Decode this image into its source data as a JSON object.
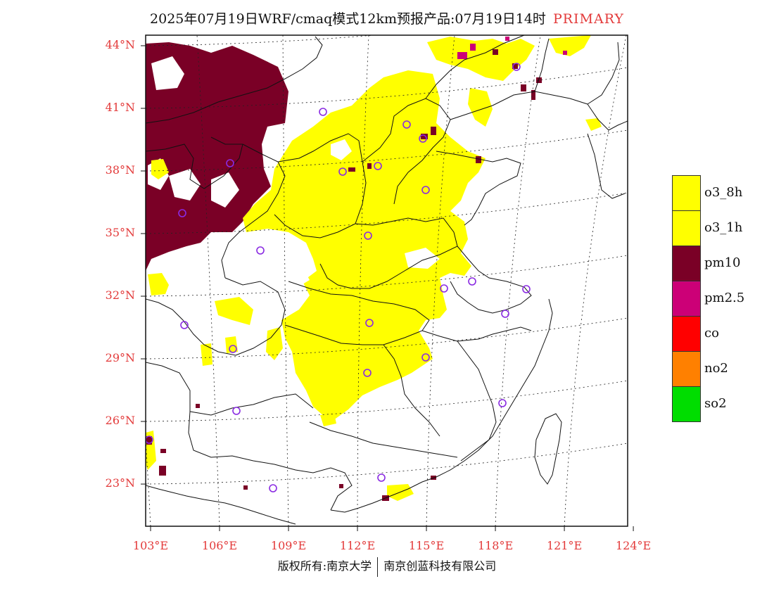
{
  "title": {
    "main": "2025年07月19日WRF/cmaq模式12km预报产品:07月19日14时",
    "tag": "PRIMARY"
  },
  "axes": {
    "lat_labels": [
      "44°N",
      "41°N",
      "38°N",
      "35°N",
      "32°N",
      "29°N",
      "26°N",
      "23°N"
    ],
    "lat_values": [
      44,
      41,
      38,
      35,
      32,
      29,
      26,
      23
    ],
    "lon_labels": [
      "103°E",
      "106°E",
      "109°E",
      "112°E",
      "115°E",
      "118°E",
      "121°E",
      "124°E"
    ],
    "lon_values": [
      103,
      106,
      109,
      112,
      115,
      118,
      121,
      124
    ]
  },
  "legend": [
    {
      "label": "o3_8h",
      "color": "#ffff00"
    },
    {
      "label": "o3_1h",
      "color": "#ffff00"
    },
    {
      "label": "pm10",
      "color": "#7a0026"
    },
    {
      "label": "pm2.5",
      "color": "#cc0077"
    },
    {
      "label": "co",
      "color": "#ff0000"
    },
    {
      "label": "no2",
      "color": "#ff8000"
    },
    {
      "label": "so2",
      "color": "#00dd00"
    }
  ],
  "colors": {
    "ozone": "#ffff00",
    "pm10": "#7a0026",
    "pm25": "#cc0077",
    "station_marker": "#8a2be2",
    "axis_label": "#e33a3a"
  },
  "footer": {
    "left": "版权所有:南京大学",
    "right": "南京创蓝科技有限公司"
  }
}
